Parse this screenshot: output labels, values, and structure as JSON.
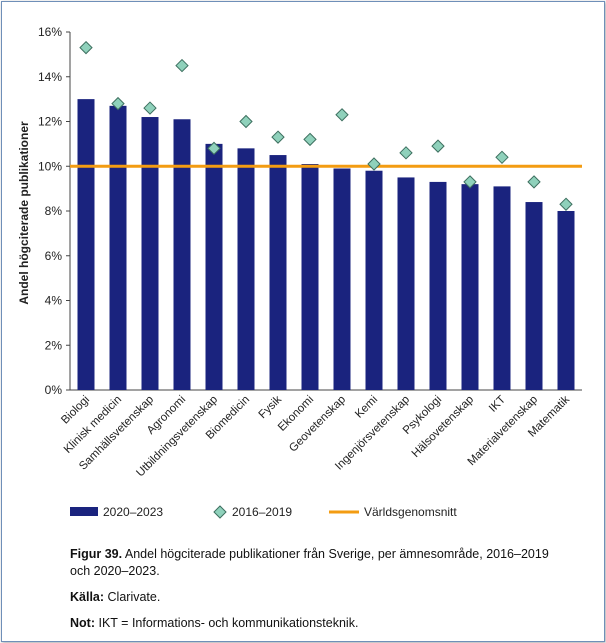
{
  "chart_data": {
    "type": "bar",
    "ylabel": "Andel högciterade publikationer",
    "ylim": [
      0,
      16
    ],
    "yticks": [
      "0%",
      "2%",
      "4%",
      "6%",
      "8%",
      "10%",
      "12%",
      "14%",
      "16%"
    ],
    "grid": false,
    "legend_position": "bottom",
    "categories": [
      "Biologi",
      "Klinisk medicin",
      "Samhällsvetenskap",
      "Agronomi",
      "Utbildningsvetenskap",
      "Biomedicin",
      "Fysik",
      "Ekonomi",
      "Geovetenskap",
      "Kemi",
      "Ingenjörsvetenskap",
      "Psykologi",
      "Hälsovetenskap",
      "IKT",
      "Materialvetenskap",
      "Matematik"
    ],
    "series": [
      {
        "name": "2020–2023",
        "kind": "bar",
        "color": "#1a237e",
        "values": [
          13.0,
          12.7,
          12.2,
          12.1,
          11.0,
          10.8,
          10.5,
          10.1,
          9.9,
          9.8,
          9.5,
          9.3,
          9.2,
          9.1,
          8.4,
          8.0
        ]
      },
      {
        "name": "2016–2019",
        "kind": "marker",
        "color": "#8fd1bb",
        "stroke": "#3d6f5f",
        "values": [
          15.3,
          12.8,
          12.6,
          14.5,
          10.8,
          12.0,
          11.3,
          11.2,
          12.3,
          10.1,
          10.6,
          10.9,
          9.3,
          10.4,
          9.3,
          8.3
        ]
      },
      {
        "name": "Världsgenomsnitt",
        "kind": "line",
        "color": "#f39c12",
        "value": 10.0
      }
    ]
  },
  "caption": {
    "figure_label": "Figur 39.",
    "figure_text": " Andel högciterade publikationer från Sverige, per ämnesområde, 2016–2019 och 2020–2023.",
    "source_label": "Källa:",
    "source_text": " Clarivate.",
    "note_label": "Not:",
    "note_text": " IKT = Informations- och kommunikationsteknik."
  }
}
